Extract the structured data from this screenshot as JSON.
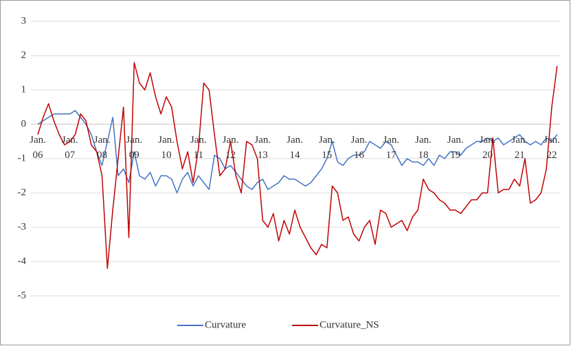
{
  "chart_data": {
    "type": "line",
    "categories": [
      "Jan. 06",
      null,
      null,
      null,
      null,
      null,
      "Jan. 07",
      null,
      null,
      null,
      null,
      null,
      "Jan. 08",
      null,
      null,
      null,
      null,
      null,
      "Jan. 09",
      null,
      null,
      null,
      null,
      null,
      "Jan. 10",
      null,
      null,
      null,
      null,
      null,
      "Jan. 11",
      null,
      null,
      null,
      null,
      null,
      "Jan. 12",
      null,
      null,
      null,
      null,
      null,
      "Jan. 13",
      null,
      null,
      null,
      null,
      null,
      "Jan. 14",
      null,
      null,
      null,
      null,
      null,
      "Jan. 15",
      null,
      null,
      null,
      null,
      null,
      "Jan. 16",
      null,
      null,
      null,
      null,
      null,
      "Jan. 17",
      null,
      null,
      null,
      null,
      null,
      "Jan. 18",
      null,
      null,
      null,
      null,
      null,
      "Jan. 19",
      null,
      null,
      null,
      null,
      null,
      "Jan. 20",
      null,
      null,
      null,
      null,
      null,
      "Jan. 21",
      null,
      null,
      null,
      null,
      null,
      "Jan. 22",
      null
    ],
    "series": [
      {
        "name": "Curvature",
        "color": "#4472c4",
        "values": [
          0,
          0.1,
          0.2,
          0.3,
          0.3,
          0.3,
          0.3,
          0.4,
          0.2,
          0.0,
          -0.3,
          -0.8,
          -1.2,
          -0.5,
          0.2,
          -1.5,
          -1.3,
          -1.7,
          -0.8,
          -1.5,
          -1.6,
          -1.4,
          -1.8,
          -1.5,
          -1.5,
          -1.6,
          -2.0,
          -1.6,
          -1.4,
          -1.8,
          -1.5,
          -1.7,
          -1.9,
          -0.9,
          -1.0,
          -1.3,
          -1.2,
          -1.4,
          -1.6,
          -1.8,
          -1.9,
          -1.7,
          -1.6,
          -1.9,
          -1.8,
          -1.7,
          -1.5,
          -1.6,
          -1.6,
          -1.7,
          -1.8,
          -1.7,
          -1.5,
          -1.3,
          -1.0,
          -0.5,
          -1.1,
          -1.2,
          -1.0,
          -0.9,
          -0.9,
          -0.8,
          -0.5,
          -0.6,
          -0.7,
          -0.5,
          -0.6,
          -0.9,
          -1.2,
          -1.0,
          -1.1,
          -1.1,
          -1.2,
          -1.0,
          -1.2,
          -0.9,
          -1.0,
          -0.8,
          -0.8,
          -0.9,
          -0.7,
          -0.6,
          -0.5,
          -0.5,
          -0.4,
          -0.5,
          -0.4,
          -0.6,
          -0.5,
          -0.4,
          -0.3,
          -0.5,
          -0.6,
          -0.5,
          -0.6,
          -0.4,
          -0.5,
          -0.3
        ]
      },
      {
        "name": "Curvature_NS",
        "color": "#c00000",
        "values": [
          -0.3,
          0.2,
          0.6,
          0.1,
          -0.3,
          -0.6,
          -0.5,
          -0.3,
          0.3,
          0.1,
          -0.6,
          -0.8,
          -1.5,
          -4.2,
          -2.5,
          -1.0,
          0.5,
          -3.3,
          1.8,
          1.2,
          1.0,
          1.5,
          0.8,
          0.3,
          0.8,
          0.5,
          -0.5,
          -1.3,
          -0.8,
          -1.7,
          -0.7,
          1.2,
          1.0,
          -0.3,
          -1.5,
          -1.3,
          -0.5,
          -1.5,
          -2.0,
          -0.5,
          -0.6,
          -1.0,
          -2.8,
          -3.0,
          -2.6,
          -3.4,
          -2.8,
          -3.2,
          -2.5,
          -3.0,
          -3.3,
          -3.6,
          -3.8,
          -3.5,
          -3.6,
          -1.8,
          -2.0,
          -2.8,
          -2.7,
          -3.2,
          -3.4,
          -3.0,
          -2.8,
          -3.5,
          -2.5,
          -2.6,
          -3.0,
          -2.9,
          -2.8,
          -3.1,
          -2.7,
          -2.5,
          -1.6,
          -1.9,
          -2.0,
          -2.2,
          -2.3,
          -2.5,
          -2.5,
          -2.6,
          -2.4,
          -2.2,
          -2.2,
          -2.0,
          -2.0,
          -0.4,
          -2.0,
          -1.9,
          -1.9,
          -1.6,
          -1.8,
          -1.0,
          -2.3,
          -2.2,
          -2.0,
          -1.3,
          0.5,
          1.7
        ]
      }
    ],
    "ylim": [
      -5,
      3
    ],
    "yticks": [
      3,
      2,
      1,
      0,
      -1,
      -2,
      -3,
      -4,
      -5
    ],
    "grid": true,
    "legend": "bottom"
  }
}
